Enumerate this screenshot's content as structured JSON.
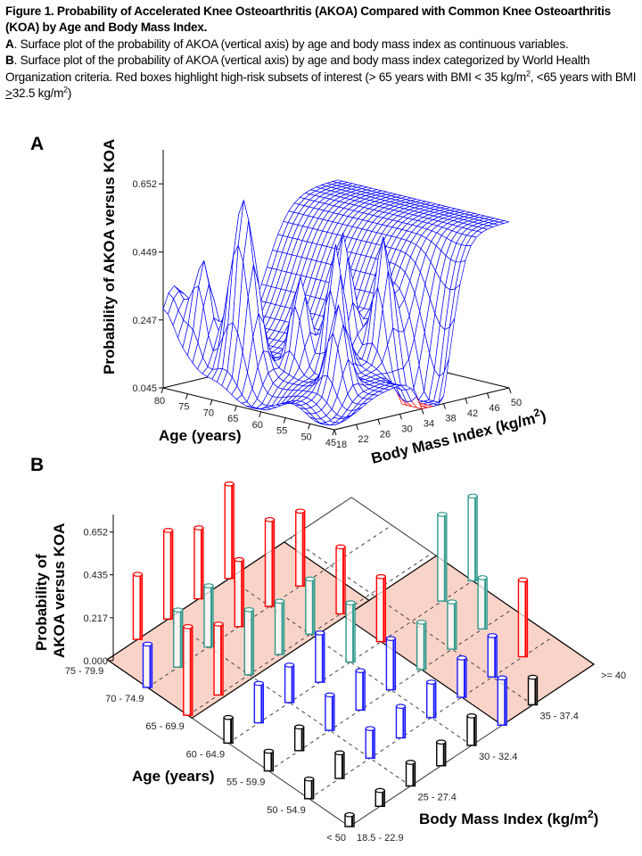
{
  "caption": {
    "title": "Figure 1. Probability of Accelerated Knee Osteoarthritis (AKOA) Compared with Common Knee Osteoarthritis (KOA) by Age and Body Mass Index.",
    "a_label": "A",
    "a_text": ". Surface plot of the probability of AKOA (vertical axis) by age and body mass index as continuous variables.",
    "b_label": "B",
    "b_text_1": ". Surface plot of the probability of AKOA (vertical axis) by age and body mass index categorized by World Health Organization criteria. Red boxes highlight high-risk subsets of interest (> 65 years with BMI < 35 kg/m",
    "b_sup_1": "2",
    "b_text_2": ", <65 years with BMI ",
    "b_ge": ">",
    "b_text_3": "32.5 kg/m",
    "b_sup_2": "2",
    "b_text_4": ")"
  },
  "chart_data": [
    {
      "panel": "A",
      "type": "surface",
      "zlabel": "Probability of AKOA versus KOA",
      "xlabel": "Age (years)",
      "ylabel_text": "Body Mass Index (kg/m",
      "ylabel_sup": "2",
      "ylabel_close": ")",
      "z_ticks": [
        "0.045",
        "0.247",
        "0.449",
        "0.652"
      ],
      "zlim": [
        0.045,
        0.652
      ],
      "age_ticks": [
        "80",
        "75",
        "70",
        "65",
        "60",
        "55",
        "50",
        "45"
      ],
      "xlim": [
        80,
        45
      ],
      "bmi_ticks": [
        "18",
        "22",
        "26",
        "30",
        "34",
        "38",
        "42",
        "46",
        "50"
      ],
      "ylim": [
        18,
        50
      ],
      "mesh_color": "#0000ff",
      "highlight_color": "#ff0000"
    },
    {
      "panel": "B",
      "type": "bar3d",
      "zlabel_line1": "Probability of",
      "zlabel_line2": "AKOA versus KOA",
      "xlabel": "Age (years)",
      "ylabel_text": "Body Mass Index (kg/m",
      "ylabel_sup": "2",
      "ylabel_close": ")",
      "z_ticks": [
        "0.000",
        "0.217",
        "0.435",
        "0.652"
      ],
      "age_categories": [
        "< 50",
        "50 - 54.9",
        "55 - 59.9",
        "60 - 64.9",
        "65 - 69.9",
        "70 - 74.9",
        "75 - 79.9"
      ],
      "bmi_categories": [
        "18.5 - 22.9",
        "",
        "25 - 27.4",
        "",
        "30 - 32.4",
        "",
        "35 - 37.4",
        "",
        ">= 40"
      ],
      "colors": {
        "red": "#ff0000",
        "teal": "#2e9a8c",
        "blue": "#1a1aff",
        "black": "#000000",
        "highlight": "#f7b6a3"
      },
      "bars": [
        {
          "age": 6,
          "bmi": 1,
          "value": 0.33,
          "color": "red"
        },
        {
          "age": 6,
          "bmi": 2,
          "value": 0.45,
          "color": "red"
        },
        {
          "age": 6,
          "bmi": 3,
          "value": 0.36,
          "color": "red"
        },
        {
          "age": 6,
          "bmi": 4,
          "value": 0.48,
          "color": "red"
        },
        {
          "age": 5,
          "bmi": 3,
          "value": 0.34,
          "color": "red"
        },
        {
          "age": 5,
          "bmi": 4,
          "value": 0.44,
          "color": "red"
        },
        {
          "age": 5,
          "bmi": 5,
          "value": 0.38,
          "color": "red"
        },
        {
          "age": 4,
          "bmi": 5,
          "value": 0.34,
          "color": "red"
        },
        {
          "age": 3,
          "bmi": 5,
          "value": 0.33,
          "color": "red"
        },
        {
          "age": 1,
          "bmi": 7,
          "value": 0.39,
          "color": "red"
        },
        {
          "age": 4,
          "bmi": 0,
          "value": 0.45,
          "color": "red"
        },
        {
          "age": 4,
          "bmi": 1,
          "value": 0.36,
          "color": "red"
        },
        {
          "age": 5,
          "bmi": 1,
          "value": 0.29,
          "color": "teal"
        },
        {
          "age": 5,
          "bmi": 2,
          "value": 0.31,
          "color": "teal"
        },
        {
          "age": 4,
          "bmi": 2,
          "value": 0.33,
          "color": "teal"
        },
        {
          "age": 4,
          "bmi": 3,
          "value": 0.27,
          "color": "teal"
        },
        {
          "age": 4,
          "bmi": 4,
          "value": 0.28,
          "color": "teal"
        },
        {
          "age": 3,
          "bmi": 4,
          "value": 0.3,
          "color": "teal"
        },
        {
          "age": 2,
          "bmi": 5,
          "value": 0.24,
          "color": "teal"
        },
        {
          "age": 3,
          "bmi": 7,
          "value": 0.44,
          "color": "teal"
        },
        {
          "age": 2,
          "bmi": 6,
          "value": 0.24,
          "color": "teal"
        },
        {
          "age": 3,
          "bmi": 8,
          "value": 0.43,
          "color": "teal"
        },
        {
          "age": 2,
          "bmi": 7,
          "value": 0.26,
          "color": "teal"
        },
        {
          "age": 5,
          "bmi": 0,
          "value": 0.22,
          "color": "blue"
        },
        {
          "age": 3,
          "bmi": 1,
          "value": 0.2,
          "color": "blue"
        },
        {
          "age": 3,
          "bmi": 2,
          "value": 0.19,
          "color": "blue"
        },
        {
          "age": 3,
          "bmi": 3,
          "value": 0.25,
          "color": "blue"
        },
        {
          "age": 2,
          "bmi": 2,
          "value": 0.18,
          "color": "blue"
        },
        {
          "age": 2,
          "bmi": 3,
          "value": 0.2,
          "color": "blue"
        },
        {
          "age": 2,
          "bmi": 4,
          "value": 0.26,
          "color": "blue"
        },
        {
          "age": 1,
          "bmi": 2,
          "value": 0.15,
          "color": "blue"
        },
        {
          "age": 1,
          "bmi": 3,
          "value": 0.16,
          "color": "blue"
        },
        {
          "age": 1,
          "bmi": 4,
          "value": 0.18,
          "color": "blue"
        },
        {
          "age": 1,
          "bmi": 5,
          "value": 0.2,
          "color": "blue"
        },
        {
          "age": 1,
          "bmi": 6,
          "value": 0.21,
          "color": "blue"
        },
        {
          "age": 0,
          "bmi": 5,
          "value": 0.24,
          "color": "blue"
        },
        {
          "age": 0,
          "bmi": 0,
          "value": 0.06,
          "color": "black"
        },
        {
          "age": 1,
          "bmi": 0,
          "value": 0.1,
          "color": "black"
        },
        {
          "age": 2,
          "bmi": 0,
          "value": 0.1,
          "color": "black"
        },
        {
          "age": 3,
          "bmi": 0,
          "value": 0.13,
          "color": "black"
        },
        {
          "age": 2,
          "bmi": 1,
          "value": 0.12,
          "color": "black"
        },
        {
          "age": 1,
          "bmi": 1,
          "value": 0.13,
          "color": "black"
        },
        {
          "age": 0,
          "bmi": 1,
          "value": 0.08,
          "color": "black"
        },
        {
          "age": 0,
          "bmi": 2,
          "value": 0.12,
          "color": "black"
        },
        {
          "age": 0,
          "bmi": 3,
          "value": 0.12,
          "color": "black"
        },
        {
          "age": 0,
          "bmi": 4,
          "value": 0.15,
          "color": "black"
        },
        {
          "age": 0,
          "bmi": 6,
          "value": 0.14,
          "color": "black"
        }
      ]
    }
  ]
}
